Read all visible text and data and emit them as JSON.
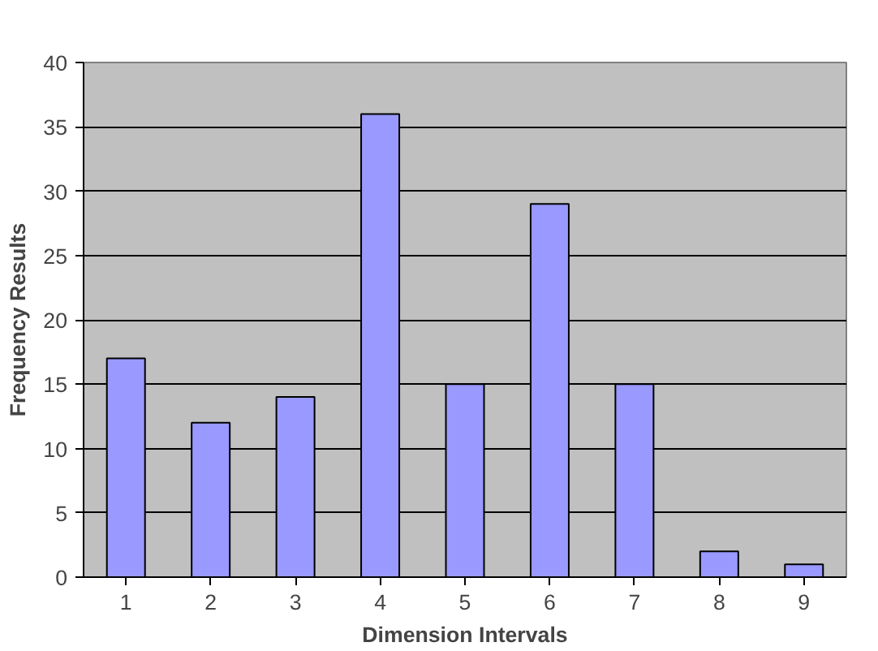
{
  "chart_data": {
    "type": "bar",
    "xlabel": "Dimension Intervals",
    "ylabel": "Frequency Results",
    "categories": [
      "1",
      "2",
      "3",
      "4",
      "5",
      "6",
      "7",
      "8",
      "9"
    ],
    "values": [
      17,
      12,
      14,
      36,
      15,
      29,
      15,
      2,
      1
    ],
    "color": "#9999ff",
    "ylim": [
      0,
      40
    ],
    "yticks": [
      0,
      5,
      10,
      15,
      20,
      25,
      30,
      35,
      40
    ],
    "grid": "y"
  }
}
